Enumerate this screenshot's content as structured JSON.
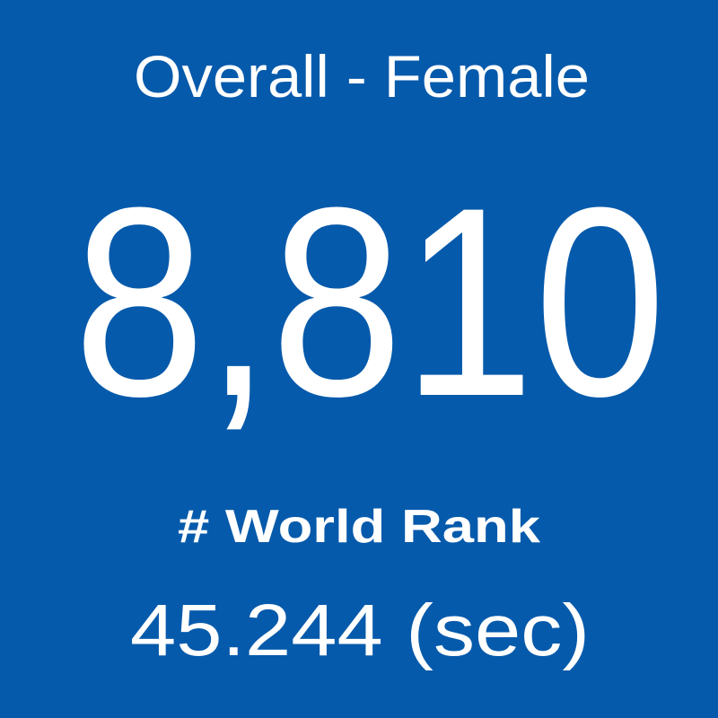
{
  "tile": {
    "title": "Overall - Female",
    "value": "8,810",
    "label": "# World Rank",
    "time": "45.244 (sec)"
  }
}
